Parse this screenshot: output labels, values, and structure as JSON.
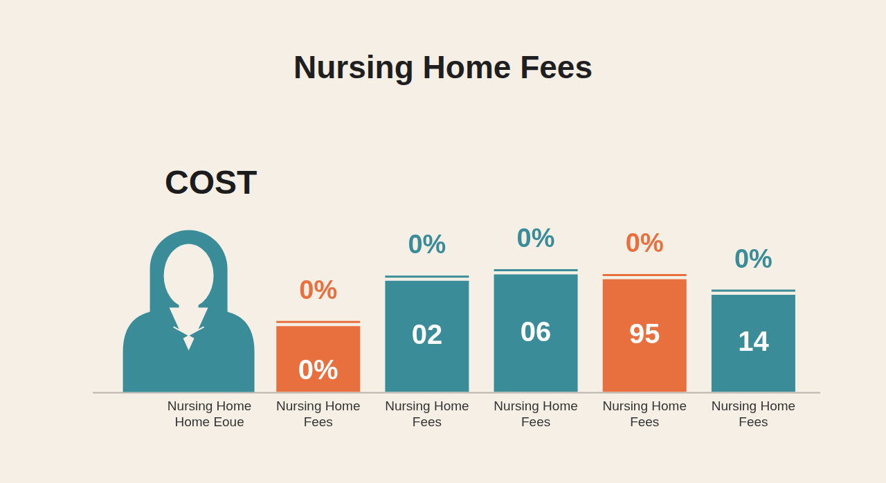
{
  "chart_data": {
    "type": "bar",
    "title": "Nursing Home Fees",
    "categories": [
      "Nursing Home\nHome Eoue",
      "Nursing Home\nFees",
      "Nursing Home\nFees",
      "Nursing Home\nFees",
      "Nursing Home\nFees",
      "Nursing Home\nFees"
    ],
    "values": [
      null,
      42,
      71,
      75,
      72,
      62
    ],
    "colors": [
      "#3a8d98",
      "#e8703f",
      "#3a8d98",
      "#3a8d98",
      "#e8703f",
      "#3a8d98"
    ],
    "annotations": {
      "heading": "COST",
      "above_bars": [
        null,
        "0%",
        "0%",
        "0%",
        "0%",
        "0%"
      ],
      "inside_bars": [
        null,
        "0%",
        "02",
        "06",
        "95",
        "14"
      ]
    },
    "ylim": [
      0,
      100
    ],
    "grid": false,
    "tick_labels": "x"
  }
}
